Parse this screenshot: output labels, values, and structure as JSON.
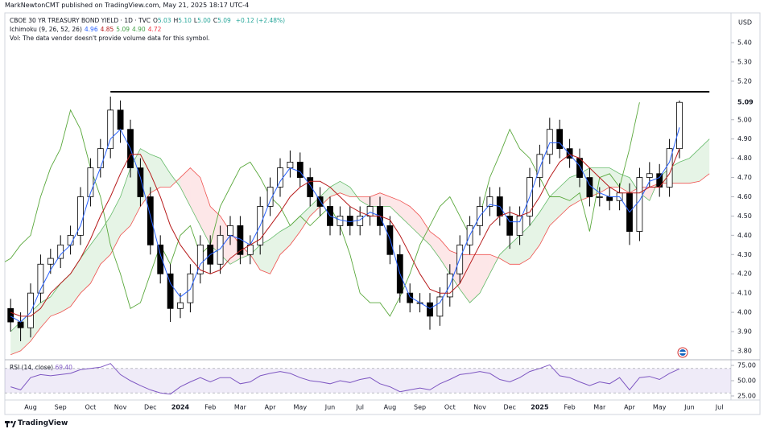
{
  "header": {
    "author": "MarkNewtonCMT published on TradingView.com, May 21, 2025 18:17 UTC-4"
  },
  "legend": {
    "symbol": "CBOE 30 YR TREASURY BOND YIELD · 1D · TVC",
    "ohlc": [
      {
        "key": "O",
        "text": "5.03"
      },
      {
        "key": "H",
        "text": "5.10"
      },
      {
        "key": "L",
        "text": "5.00"
      },
      {
        "key": "C",
        "text": "5.09"
      }
    ],
    "change": "+0.12 (+2.48%)",
    "ichimoku": "Ichimoku (9, 26, 52, 26)",
    "ichimoku_values": [
      {
        "text": "4.96",
        "color": "#2962ff"
      },
      {
        "text": "4.85",
        "color": "#b71c1c"
      },
      {
        "text": "5.09",
        "color": "#43a047"
      },
      {
        "text": "4.90",
        "color": "#43a047"
      },
      {
        "text": "4.72",
        "color": "#f23645"
      }
    ],
    "volume_note": "Vol: The data vendor doesn't provide volume data for this symbol."
  },
  "footer": {
    "brand": "TradingView"
  },
  "chart_data": {
    "type": "candlestick",
    "currency": "USD",
    "grid": false,
    "up_color": "#ffffff",
    "down_color": "#000000",
    "wick_color": "#000000",
    "categories": [
      null,
      null,
      null,
      "Aug",
      null,
      null,
      "Sep",
      null,
      null,
      "Oct",
      null,
      null,
      "Nov",
      null,
      null,
      "Dec",
      null,
      null,
      "2024",
      null,
      null,
      "Feb",
      null,
      null,
      "Mar",
      null,
      null,
      "Apr",
      null,
      null,
      "May",
      null,
      null,
      "Jun",
      null,
      null,
      "Jul",
      null,
      null,
      "Aug",
      null,
      null,
      "Sep",
      null,
      null,
      "Oct",
      null,
      null,
      "Nov",
      null,
      null,
      "Dec",
      null,
      null,
      "2025",
      null,
      null,
      "Feb",
      null,
      null,
      "Mar",
      null,
      null,
      "Apr",
      null,
      null,
      "May",
      null,
      null,
      "Jun",
      null,
      null,
      "Jul",
      null
    ],
    "open": [
      null,
      4.02,
      3.95,
      3.92,
      4.1,
      4.25,
      4.28,
      4.35,
      4.4,
      4.6,
      4.75,
      4.85,
      5.05,
      4.95,
      4.75,
      4.6,
      4.35,
      4.2,
      4.02,
      4.05,
      4.2,
      4.35,
      4.25,
      4.4,
      4.45,
      4.3,
      4.35,
      4.55,
      4.65,
      4.75,
      4.78,
      4.7,
      4.6,
      4.55,
      4.45,
      4.5,
      4.45,
      4.5,
      4.55,
      4.45,
      4.3,
      4.1,
      4.05,
      4.05,
      3.98,
      4.08,
      4.2,
      4.35,
      4.45,
      4.55,
      4.6,
      4.5,
      4.4,
      4.5,
      4.7,
      4.82,
      4.95,
      4.85,
      4.8,
      4.7,
      4.6,
      4.6,
      4.58,
      4.62,
      4.42,
      4.7,
      4.72,
      4.65,
      4.85,
      null,
      null,
      null,
      null,
      null
    ],
    "high": [
      null,
      4.07,
      4.0,
      4.15,
      4.3,
      4.33,
      4.4,
      4.45,
      4.65,
      4.8,
      4.9,
      5.12,
      5.1,
      5.0,
      4.8,
      4.65,
      4.4,
      4.25,
      4.1,
      4.25,
      4.4,
      4.4,
      4.45,
      4.5,
      4.5,
      4.4,
      4.6,
      4.7,
      4.8,
      4.84,
      4.83,
      4.75,
      4.65,
      4.6,
      4.55,
      4.55,
      4.55,
      4.6,
      4.6,
      4.5,
      4.35,
      4.15,
      4.1,
      4.1,
      4.13,
      4.25,
      4.4,
      4.5,
      4.6,
      4.65,
      4.65,
      4.55,
      4.55,
      4.75,
      4.87,
      5.01,
      5.0,
      4.9,
      4.85,
      4.75,
      4.65,
      4.65,
      4.67,
      4.67,
      4.75,
      4.78,
      4.77,
      4.9,
      5.1,
      null,
      null,
      null,
      null,
      null
    ],
    "low": [
      null,
      3.9,
      3.85,
      3.87,
      4.05,
      4.2,
      4.23,
      4.3,
      4.35,
      4.55,
      4.7,
      4.8,
      4.88,
      4.7,
      4.55,
      4.3,
      4.15,
      3.95,
      3.97,
      4.0,
      4.15,
      4.2,
      4.2,
      4.35,
      4.25,
      4.25,
      4.3,
      4.5,
      4.6,
      4.7,
      4.65,
      4.55,
      4.5,
      4.4,
      4.4,
      4.4,
      4.4,
      4.45,
      4.4,
      4.25,
      4.05,
      4.0,
      4.0,
      3.91,
      3.93,
      4.03,
      4.15,
      4.3,
      4.4,
      4.5,
      4.45,
      4.33,
      4.35,
      4.45,
      4.65,
      4.77,
      4.8,
      4.75,
      4.65,
      4.55,
      4.55,
      4.53,
      4.53,
      4.35,
      4.37,
      4.65,
      4.6,
      4.6,
      4.8,
      null,
      null,
      null,
      null,
      null
    ],
    "close": [
      null,
      3.95,
      3.92,
      4.1,
      4.25,
      4.28,
      4.35,
      4.4,
      4.6,
      4.75,
      4.85,
      5.05,
      4.95,
      4.75,
      4.6,
      4.35,
      4.2,
      4.02,
      4.05,
      4.2,
      4.35,
      4.25,
      4.4,
      4.45,
      4.3,
      4.35,
      4.55,
      4.65,
      4.75,
      4.78,
      4.7,
      4.6,
      4.55,
      4.45,
      4.5,
      4.45,
      4.5,
      4.55,
      4.45,
      4.3,
      4.1,
      4.05,
      4.05,
      3.98,
      4.08,
      4.2,
      4.35,
      4.45,
      4.55,
      4.6,
      4.5,
      4.4,
      4.5,
      4.7,
      4.82,
      4.95,
      4.85,
      4.8,
      4.7,
      4.6,
      4.6,
      4.58,
      4.62,
      4.42,
      4.7,
      4.72,
      4.65,
      4.85,
      5.09,
      null,
      null,
      null,
      null,
      null
    ],
    "conversion_line": {
      "color": "#2962ff",
      "values": [
        null,
        3.98,
        3.95,
        4.0,
        4.12,
        4.22,
        4.3,
        4.35,
        4.45,
        4.62,
        4.75,
        4.9,
        4.95,
        4.85,
        4.7,
        4.5,
        4.3,
        4.15,
        4.08,
        4.12,
        4.25,
        4.3,
        4.33,
        4.4,
        4.38,
        4.35,
        4.45,
        4.58,
        4.68,
        4.75,
        4.73,
        4.66,
        4.58,
        4.5,
        4.48,
        4.47,
        4.48,
        4.52,
        4.5,
        4.38,
        4.2,
        4.08,
        4.05,
        4.02,
        4.05,
        4.14,
        4.28,
        4.4,
        4.5,
        4.56,
        4.55,
        4.47,
        4.47,
        4.6,
        4.75,
        4.88,
        4.88,
        4.82,
        4.76,
        4.66,
        4.62,
        4.6,
        4.6,
        4.52,
        4.58,
        4.68,
        4.7,
        4.78,
        4.96,
        null,
        null,
        null,
        null,
        null
      ]
    },
    "base_line": {
      "color": "#b71c1c",
      "values": [
        null,
        4.0,
        3.98,
        3.98,
        4.02,
        4.1,
        4.15,
        4.2,
        4.28,
        4.38,
        4.5,
        4.6,
        4.72,
        4.82,
        4.82,
        4.72,
        4.6,
        4.45,
        4.35,
        4.28,
        4.22,
        4.2,
        4.22,
        4.28,
        4.32,
        4.35,
        4.38,
        4.45,
        4.52,
        4.6,
        4.65,
        4.68,
        4.68,
        4.65,
        4.6,
        4.55,
        4.52,
        4.5,
        4.5,
        4.48,
        4.4,
        4.3,
        4.2,
        4.12,
        4.1,
        4.1,
        4.15,
        4.25,
        4.35,
        4.45,
        4.5,
        4.52,
        4.5,
        4.52,
        4.6,
        4.7,
        4.78,
        4.82,
        4.8,
        4.75,
        4.7,
        4.65,
        4.62,
        4.62,
        4.62,
        4.65,
        4.65,
        4.72,
        4.85,
        null,
        null,
        null,
        null,
        null
      ]
    },
    "lagging_span": {
      "color": "#5aa83c"
    },
    "span_a": {
      "color": "#66bb6a",
      "fill": "rgba(76,175,80,0.14)",
      "values": [
        null,
        3.9,
        3.95,
        4.0,
        4.05,
        4.08,
        4.15,
        4.2,
        4.28,
        4.35,
        4.42,
        4.5,
        4.6,
        4.75,
        4.85,
        4.82,
        4.8,
        4.72,
        4.65,
        4.55,
        4.45,
        4.35,
        4.3,
        4.25,
        4.28,
        4.3,
        4.35,
        4.38,
        4.42,
        4.45,
        4.5,
        4.55,
        4.6,
        4.65,
        4.68,
        4.65,
        4.58,
        4.55,
        4.55,
        4.55,
        4.5,
        4.45,
        4.4,
        4.35,
        4.28,
        4.2,
        4.12,
        4.05,
        4.1,
        4.2,
        4.3,
        4.35,
        4.4,
        4.45,
        4.52,
        4.6,
        4.65,
        4.7,
        4.72,
        4.75,
        4.75,
        4.75,
        4.72,
        4.7,
        4.62,
        4.58,
        4.7,
        4.75,
        4.78,
        4.8,
        4.85,
        4.9,
        null,
        null
      ]
    },
    "span_b": {
      "color": "#ef5350",
      "fill": "rgba(242,54,69,0.12)",
      "values": [
        null,
        3.78,
        3.8,
        3.85,
        3.92,
        3.98,
        4.0,
        4.03,
        4.1,
        4.15,
        4.25,
        4.3,
        4.4,
        4.45,
        4.55,
        4.62,
        4.65,
        4.65,
        4.7,
        4.75,
        4.7,
        4.55,
        4.5,
        4.42,
        4.35,
        4.3,
        4.22,
        4.2,
        4.3,
        4.35,
        4.42,
        4.5,
        4.55,
        4.6,
        4.62,
        4.6,
        4.6,
        4.6,
        4.62,
        4.6,
        4.58,
        4.55,
        4.5,
        4.42,
        4.38,
        4.32,
        4.3,
        4.3,
        4.3,
        4.3,
        4.28,
        4.25,
        4.25,
        4.28,
        4.35,
        4.45,
        4.5,
        4.55,
        4.58,
        4.6,
        4.62,
        4.65,
        4.65,
        4.62,
        4.65,
        4.65,
        4.67,
        4.67,
        4.67,
        4.67,
        4.68,
        4.72,
        null,
        null
      ]
    },
    "resistance": {
      "value": 5.145,
      "color": "#000000"
    },
    "ylim": [
      3.758,
      5.538
    ],
    "yticks": [
      {
        "value": 3.8,
        "label": "3.80"
      },
      {
        "value": 3.9,
        "label": "3.90"
      },
      {
        "value": 4,
        "label": "4.00"
      },
      {
        "value": 4.1,
        "label": "4.10"
      },
      {
        "value": 4.2,
        "label": "4.20"
      },
      {
        "value": 4.3,
        "label": "4.30"
      },
      {
        "value": 4.4,
        "label": "4.40"
      },
      {
        "value": 4.5,
        "label": "4.50"
      },
      {
        "value": 4.6,
        "label": "4.60"
      },
      {
        "value": 4.7,
        "label": "4.70"
      },
      {
        "value": 4.8,
        "label": "4.80"
      },
      {
        "value": 4.9,
        "label": "4.90"
      },
      {
        "value": 5,
        "label": "5.00"
      },
      {
        "value": 5.2,
        "label": "5.20"
      },
      {
        "value": 5.3,
        "label": "5.30"
      },
      {
        "value": 5.4,
        "label": "5.40"
      }
    ],
    "rsi": {
      "label": "RSI (14, close)",
      "current_label": "69.40",
      "color": "#7e57c2",
      "band_fill": "rgba(126,87,194,0.12)",
      "band": [
        30,
        70
      ],
      "ylim": [
        19.7,
        80.3
      ],
      "yticks": [
        {
          "value": 75,
          "label": "75.00"
        },
        {
          "value": 50,
          "label": "50.00"
        },
        {
          "value": 25,
          "label": "25.00"
        }
      ],
      "values": [
        null,
        40,
        35,
        55,
        60,
        58,
        60,
        62,
        68,
        70,
        72,
        78,
        60,
        50,
        42,
        35,
        30,
        28,
        40,
        48,
        55,
        48,
        55,
        55,
        45,
        48,
        58,
        62,
        65,
        62,
        55,
        50,
        48,
        45,
        50,
        47,
        52,
        55,
        45,
        40,
        32,
        35,
        38,
        35,
        45,
        52,
        60,
        62,
        65,
        62,
        52,
        48,
        55,
        65,
        70,
        76,
        58,
        55,
        48,
        42,
        48,
        45,
        55,
        35,
        55,
        57,
        52,
        62,
        69.4,
        null,
        null,
        null,
        null,
        null
      ]
    }
  }
}
